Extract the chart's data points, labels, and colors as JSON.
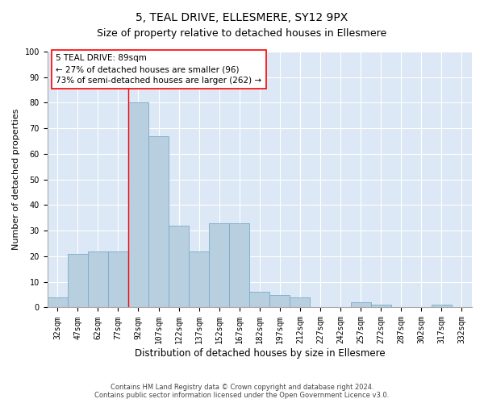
{
  "title": "5, TEAL DRIVE, ELLESMERE, SY12 9PX",
  "subtitle": "Size of property relative to detached houses in Ellesmere",
  "xlabel": "Distribution of detached houses by size in Ellesmere",
  "ylabel": "Number of detached properties",
  "categories": [
    "32sqm",
    "47sqm",
    "62sqm",
    "77sqm",
    "92sqm",
    "107sqm",
    "122sqm",
    "137sqm",
    "152sqm",
    "167sqm",
    "182sqm",
    "197sqm",
    "212sqm",
    "227sqm",
    "242sqm",
    "257sqm",
    "272sqm",
    "287sqm",
    "302sqm",
    "317sqm",
    "332sqm"
  ],
  "values": [
    4,
    21,
    22,
    22,
    80,
    67,
    32,
    22,
    33,
    33,
    6,
    5,
    4,
    0,
    0,
    2,
    1,
    0,
    0,
    1,
    0
  ],
  "bar_color": "#b8cfe0",
  "bar_edgecolor": "#7aaac8",
  "property_bin_index": 4,
  "red_line_label": "5 TEAL DRIVE: 89sqm",
  "annotation_line1": "← 27% of detached houses are smaller (96)",
  "annotation_line2": "73% of semi-detached houses are larger (262) →",
  "ylim": [
    0,
    100
  ],
  "yticks": [
    0,
    10,
    20,
    30,
    40,
    50,
    60,
    70,
    80,
    90,
    100
  ],
  "background_color": "#dce8f5",
  "grid_color": "#ffffff",
  "footer1": "Contains HM Land Registry data © Crown copyright and database right 2024.",
  "footer2": "Contains public sector information licensed under the Open Government Licence v3.0.",
  "title_fontsize": 10,
  "subtitle_fontsize": 9,
  "xlabel_fontsize": 8.5,
  "ylabel_fontsize": 8,
  "tick_fontsize": 7,
  "annotation_fontsize": 7.5,
  "annotation_box_color": "white",
  "annotation_box_edgecolor": "red"
}
